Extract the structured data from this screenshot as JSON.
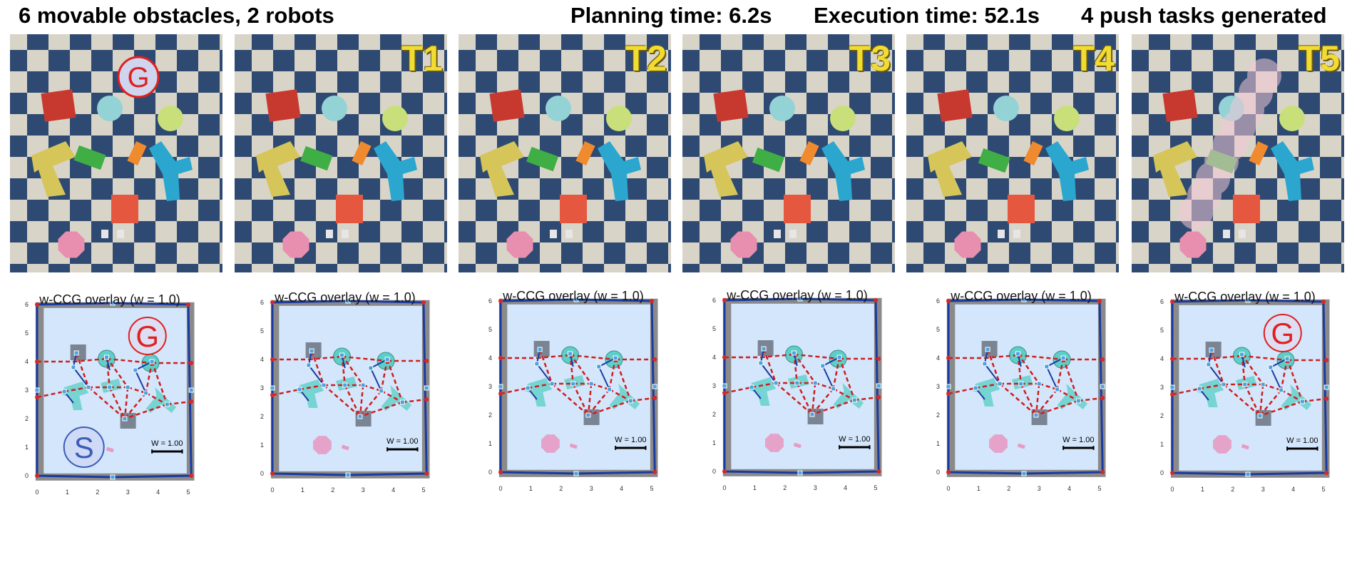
{
  "header": {
    "left": "6 movable obstacles, 2 robots",
    "planning": "Planning time: 6.2s",
    "execution": "Execution time: 52.1s",
    "tasks": "4 push tasks generated"
  },
  "photos": [
    {
      "label": ""
    },
    {
      "label": "T1"
    },
    {
      "label": "T2"
    },
    {
      "label": "T3"
    },
    {
      "label": "T4"
    },
    {
      "label": "T5"
    }
  ],
  "plots": [
    {
      "title": "w-CCG overlay (w = 1.0)",
      "scale_label": "W = 1.00"
    },
    {
      "title": "w-CCG overlay (w = 1.0)",
      "scale_label": "W = 1.00"
    },
    {
      "title": "w-CCG overlay (w = 1.0)",
      "scale_label": "W = 1.00"
    },
    {
      "title": "w-CCG overlay (w = 1.0)",
      "scale_label": "W = 1.00"
    },
    {
      "title": "w-CCG overlay (w = 1.0)",
      "scale_label": "W = 1.00"
    },
    {
      "title": "w-CCG overlay (w = 1.0)",
      "scale_label": "W = 1.00"
    }
  ],
  "axis": {
    "x_ticks": [
      "0",
      "1",
      "2",
      "3",
      "4",
      "5"
    ],
    "y_ticks": [
      "0",
      "1",
      "2",
      "3",
      "4",
      "5",
      "6"
    ]
  },
  "markers": {
    "goal": "G",
    "start": "S"
  },
  "colors": {
    "free_space": "#d4e6fb",
    "boundary": "#1a3aa0",
    "edge_red": "#cc1f1f",
    "obstacle_teal": "#5ecfc8",
    "robot_dark": "#6b7280",
    "goal_red": "#e02020",
    "start_blue": "#3b5cb8",
    "label_yellow": "#f2dc32"
  }
}
